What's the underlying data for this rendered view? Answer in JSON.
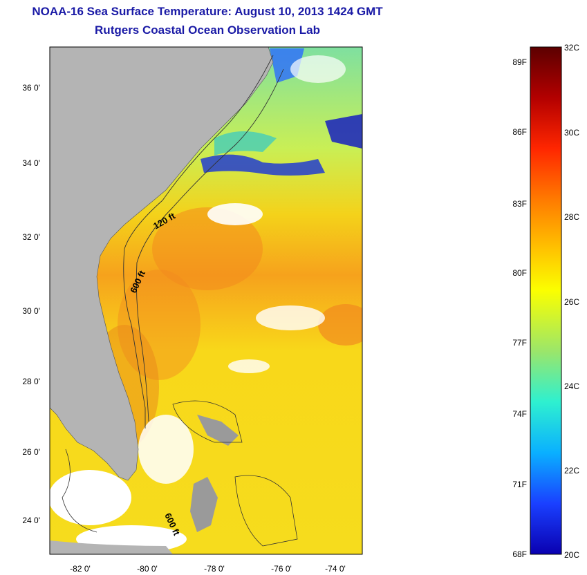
{
  "header": {
    "title": "NOAA-16 Sea Surface Temperature:  August 10, 2013 1424 GMT",
    "subtitle": "Rutgers Coastal Ocean Observation Lab"
  },
  "map": {
    "lat_labels": [
      "36 0'",
      "34 0'",
      "32 0'",
      "30 0'",
      "28 0'",
      "26 0'",
      "24 0'"
    ],
    "lon_labels": [
      "-82 0'",
      "-80 0'",
      "-78 0'",
      "-76 0'",
      "-74 0'"
    ],
    "contour_labels": [
      "120 ft",
      "600 ft",
      "600 ft"
    ],
    "land_color": "#b4b4b4",
    "cloud_color": "#ffffff"
  },
  "colorbar": {
    "fahrenheit_labels": [
      "89F",
      "86F",
      "83F",
      "80F",
      "77F",
      "74F",
      "71F",
      "68F"
    ],
    "celsius_labels": [
      "32C",
      "30C",
      "28C",
      "26C",
      "24C",
      "22C",
      "20C"
    ],
    "stops": [
      "#5c0000",
      "#b30000",
      "#ff2600",
      "#ff7a00",
      "#ffc400",
      "#fbff00",
      "#9be66a",
      "#2ef0d0",
      "#0ab0ff",
      "#1a40ff",
      "#0a00b0"
    ]
  }
}
